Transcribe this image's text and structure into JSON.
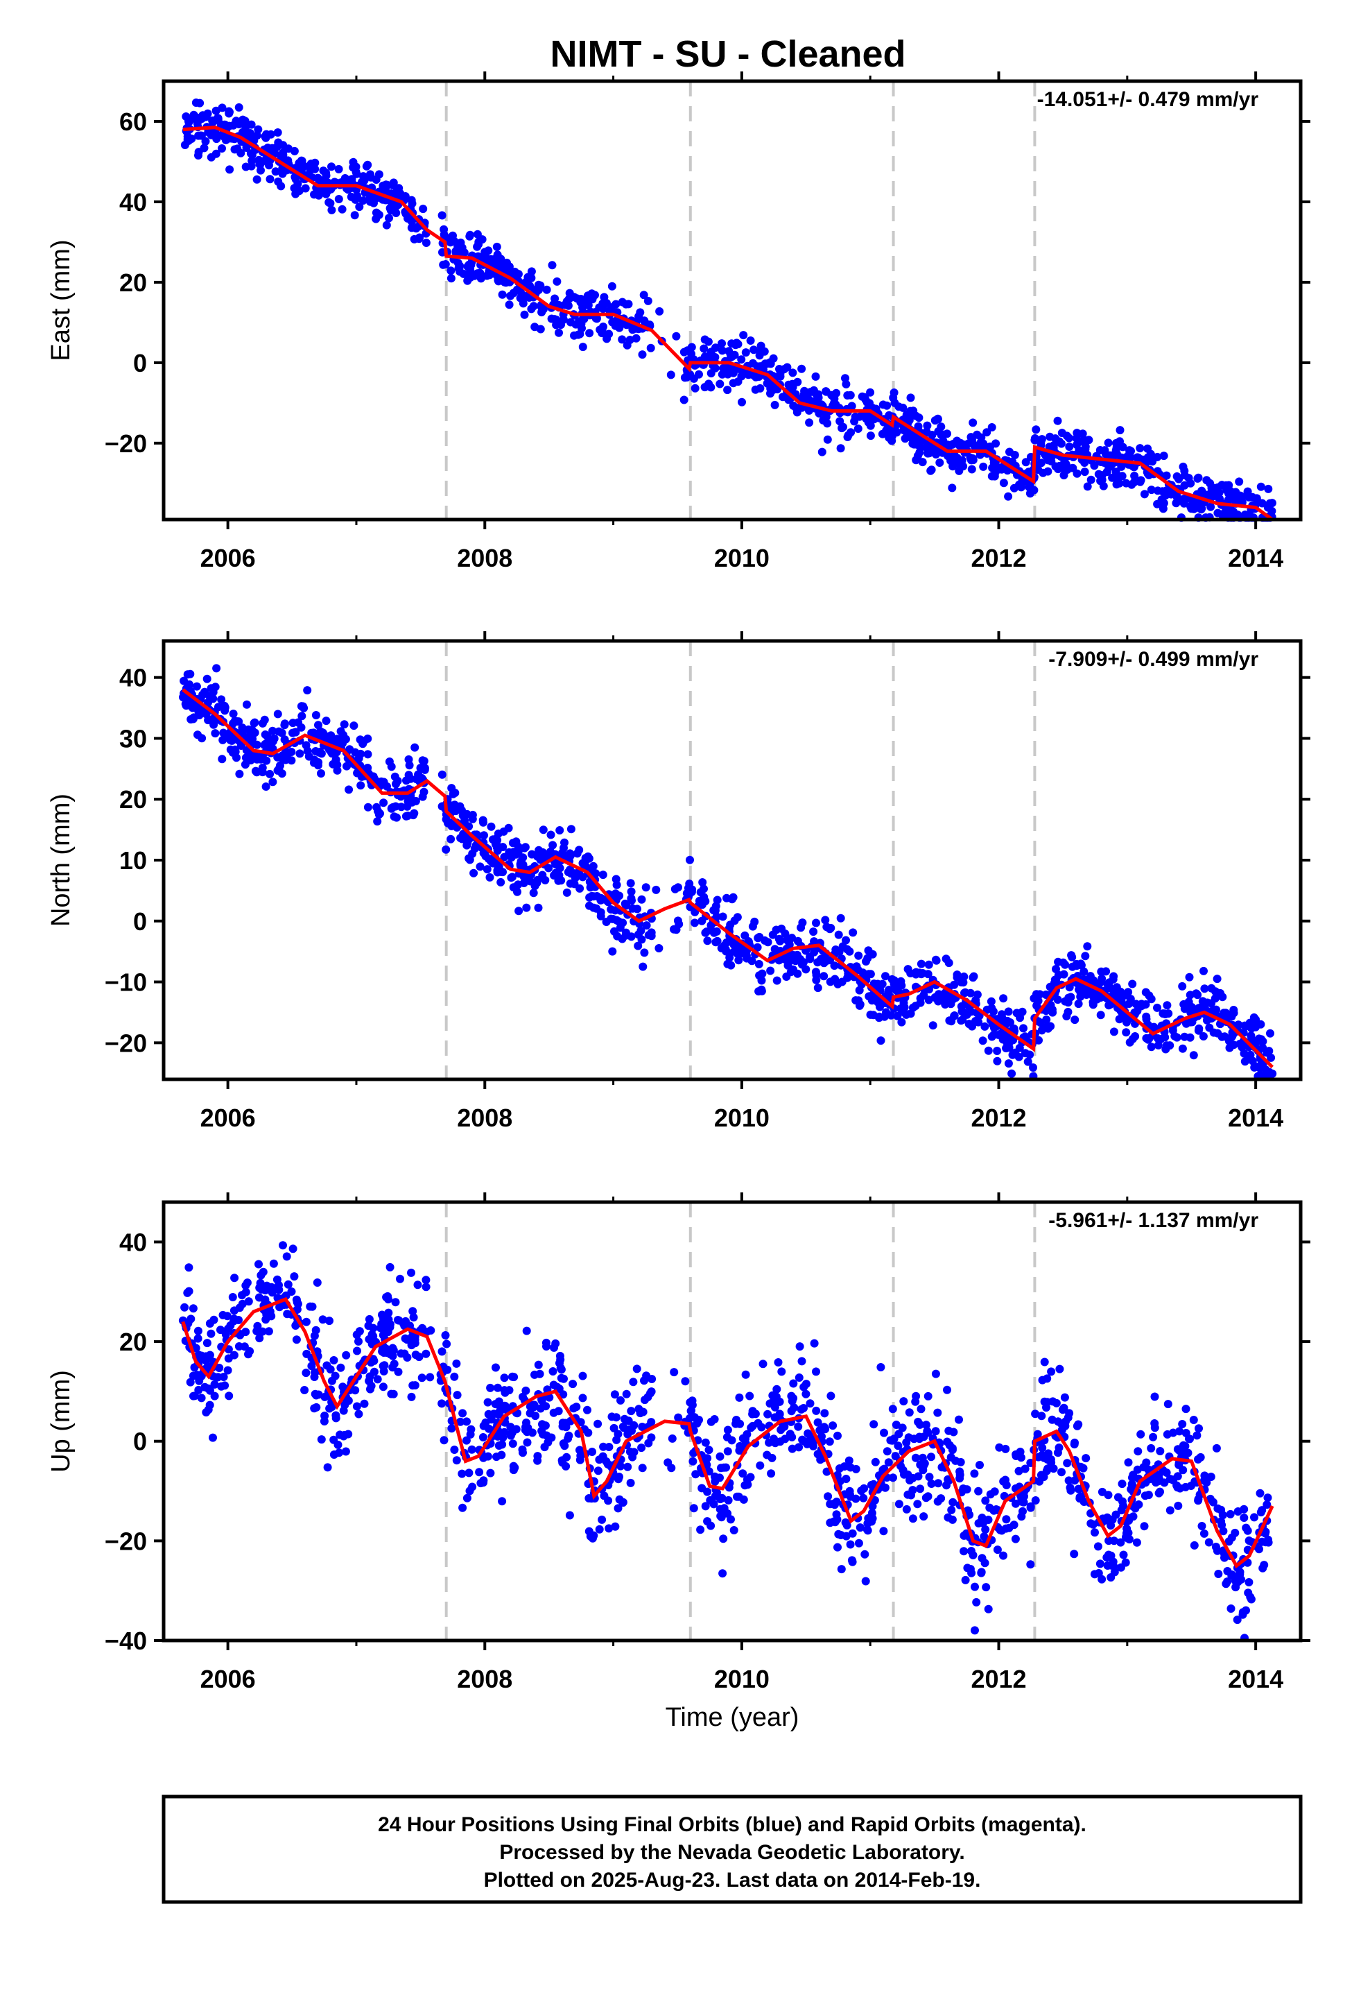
{
  "title": "NIMT  - SU - Cleaned",
  "xlabel": "Time (year)",
  "footer": {
    "line1": "24 Hour Positions Using Final Orbits (blue) and Rapid Orbits (magenta).",
    "line2": "Processed by the Nevada Geodetic Laboratory.",
    "line3": "Plotted on 2025-Aug-23. Last data on 2014-Feb-19."
  },
  "colors": {
    "data": "#0000ff",
    "model": "#ff0000",
    "steps": "#c8c8c8"
  },
  "chart_data": [
    {
      "type": "scatter",
      "component": "east",
      "ylabel": "East (mm)",
      "rate_text": "-14.051+/- 0.479 mm/yr",
      "xlim": [
        2005.5,
        2014.35
      ],
      "ylim": [
        -39,
        70
      ],
      "xticks": [
        2006,
        2008,
        2010,
        2012,
        2014
      ],
      "yticks": [
        -20,
        0,
        20,
        40,
        60
      ],
      "steps": [
        2007.7,
        2009.6,
        2011.18,
        2012.28
      ],
      "x_range": [
        2005.65,
        2014.13
      ],
      "model": {
        "xy": [
          [
            2005.65,
            58
          ],
          [
            2005.9,
            58.5
          ],
          [
            2006.1,
            56
          ],
          [
            2006.4,
            50
          ],
          [
            2006.7,
            44
          ],
          [
            2007.0,
            44
          ],
          [
            2007.35,
            40
          ],
          [
            2007.55,
            33
          ],
          [
            2007.69,
            30
          ],
          [
            2007.7,
            26.5
          ],
          [
            2007.9,
            26
          ],
          [
            2008.2,
            21
          ],
          [
            2008.5,
            14
          ],
          [
            2008.7,
            12
          ],
          [
            2009.0,
            12
          ],
          [
            2009.3,
            8
          ],
          [
            2009.59,
            -1.5
          ],
          [
            2009.6,
            0
          ],
          [
            2009.9,
            0
          ],
          [
            2010.2,
            -3
          ],
          [
            2010.45,
            -10
          ],
          [
            2010.7,
            -12
          ],
          [
            2011.0,
            -12
          ],
          [
            2011.17,
            -15.5
          ],
          [
            2011.18,
            -13.5
          ],
          [
            2011.4,
            -18
          ],
          [
            2011.6,
            -22
          ],
          [
            2011.9,
            -22
          ],
          [
            2012.27,
            -29.5
          ],
          [
            2012.28,
            -21
          ],
          [
            2012.5,
            -23
          ],
          [
            2012.8,
            -24
          ],
          [
            2013.1,
            -25
          ],
          [
            2013.4,
            -32
          ],
          [
            2013.7,
            -35
          ],
          [
            2014.0,
            -36
          ],
          [
            2014.13,
            -39
          ]
        ]
      },
      "scatter": {
        "noise": 3.2,
        "n": 1450
      }
    },
    {
      "type": "scatter",
      "component": "north",
      "ylabel": "North (mm)",
      "rate_text": "-7.909+/- 0.499 mm/yr",
      "xlim": [
        2005.5,
        2014.35
      ],
      "ylim": [
        -26,
        46
      ],
      "xticks": [
        2006,
        2008,
        2010,
        2012,
        2014
      ],
      "yticks": [
        -20,
        -10,
        0,
        10,
        20,
        30,
        40
      ],
      "steps": [
        2007.7,
        2009.6,
        2011.18,
        2012.28
      ],
      "x_range": [
        2005.65,
        2014.13
      ],
      "model": {
        "xy": [
          [
            2005.65,
            38
          ],
          [
            2005.9,
            34
          ],
          [
            2006.2,
            28
          ],
          [
            2006.35,
            27.5
          ],
          [
            2006.6,
            30.5
          ],
          [
            2006.9,
            28
          ],
          [
            2007.2,
            21
          ],
          [
            2007.4,
            21
          ],
          [
            2007.55,
            23
          ],
          [
            2007.69,
            20.5
          ],
          [
            2007.7,
            18
          ],
          [
            2007.9,
            14
          ],
          [
            2008.2,
            8.5
          ],
          [
            2008.35,
            8
          ],
          [
            2008.55,
            10.5
          ],
          [
            2008.8,
            8
          ],
          [
            2009.0,
            3
          ],
          [
            2009.2,
            0
          ],
          [
            2009.4,
            2
          ],
          [
            2009.59,
            3.5
          ],
          [
            2009.6,
            3
          ],
          [
            2009.9,
            -2
          ],
          [
            2010.2,
            -6.5
          ],
          [
            2010.4,
            -4.5
          ],
          [
            2010.6,
            -4
          ],
          [
            2010.9,
            -9
          ],
          [
            2011.17,
            -14
          ],
          [
            2011.18,
            -12.5
          ],
          [
            2011.3,
            -12
          ],
          [
            2011.5,
            -10
          ],
          [
            2011.75,
            -13
          ],
          [
            2012.0,
            -17
          ],
          [
            2012.27,
            -21
          ],
          [
            2012.28,
            -16
          ],
          [
            2012.45,
            -11
          ],
          [
            2012.6,
            -9.5
          ],
          [
            2012.8,
            -11.5
          ],
          [
            2013.0,
            -15
          ],
          [
            2013.2,
            -18.5
          ],
          [
            2013.45,
            -16
          ],
          [
            2013.6,
            -15
          ],
          [
            2013.8,
            -17
          ],
          [
            2014.13,
            -24
          ]
        ]
      },
      "scatter": {
        "noise": 2.6,
        "n": 1450
      }
    },
    {
      "type": "scatter",
      "component": "up",
      "ylabel": "Up (mm)",
      "rate_text": "-5.961+/- 1.137 mm/yr",
      "xlim": [
        2005.5,
        2014.35
      ],
      "ylim": [
        -40,
        48
      ],
      "xticks": [
        2006,
        2008,
        2010,
        2012,
        2014
      ],
      "yticks": [
        -40,
        -20,
        0,
        20,
        40
      ],
      "steps": [
        2007.7,
        2009.6,
        2011.18,
        2012.28
      ],
      "x_range": [
        2005.65,
        2014.13
      ],
      "model": {
        "xy": [
          [
            2005.65,
            24
          ],
          [
            2005.75,
            16
          ],
          [
            2005.85,
            13
          ],
          [
            2006.0,
            20
          ],
          [
            2006.2,
            26
          ],
          [
            2006.45,
            28.5
          ],
          [
            2006.6,
            22
          ],
          [
            2006.75,
            12
          ],
          [
            2006.85,
            7
          ],
          [
            2007.0,
            13
          ],
          [
            2007.15,
            19
          ],
          [
            2007.4,
            22.5
          ],
          [
            2007.55,
            21
          ],
          [
            2007.69,
            12
          ],
          [
            2007.85,
            -4
          ],
          [
            2007.95,
            -3
          ],
          [
            2008.15,
            5
          ],
          [
            2008.4,
            9
          ],
          [
            2008.55,
            10
          ],
          [
            2008.75,
            2
          ],
          [
            2008.85,
            -11
          ],
          [
            2008.95,
            -8
          ],
          [
            2009.1,
            0
          ],
          [
            2009.4,
            4
          ],
          [
            2009.59,
            3.5
          ],
          [
            2009.6,
            2
          ],
          [
            2009.75,
            -9
          ],
          [
            2009.85,
            -9.5
          ],
          [
            2010.05,
            -1
          ],
          [
            2010.3,
            4
          ],
          [
            2010.5,
            5
          ],
          [
            2010.65,
            -3
          ],
          [
            2010.85,
            -16
          ],
          [
            2010.95,
            -14
          ],
          [
            2011.1,
            -7
          ],
          [
            2011.3,
            -2
          ],
          [
            2011.5,
            0
          ],
          [
            2011.65,
            -8
          ],
          [
            2011.8,
            -20
          ],
          [
            2011.9,
            -21
          ],
          [
            2012.05,
            -12
          ],
          [
            2012.27,
            -8
          ],
          [
            2012.28,
            0
          ],
          [
            2012.45,
            2
          ],
          [
            2012.55,
            -2
          ],
          [
            2012.7,
            -12
          ],
          [
            2012.85,
            -19
          ],
          [
            2012.95,
            -17
          ],
          [
            2013.1,
            -8
          ],
          [
            2013.35,
            -3.5
          ],
          [
            2013.5,
            -4
          ],
          [
            2013.7,
            -18
          ],
          [
            2013.85,
            -25
          ],
          [
            2013.95,
            -23
          ],
          [
            2014.13,
            -13
          ]
        ]
      },
      "scatter": {
        "noise": 6.0,
        "n": 1450
      }
    }
  ]
}
